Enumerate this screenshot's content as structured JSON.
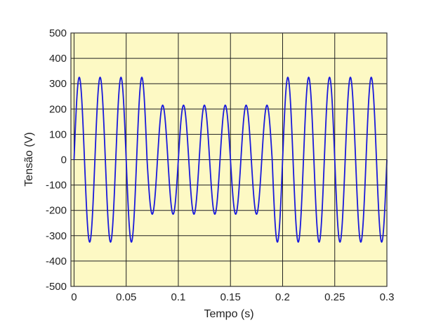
{
  "chart_data": {
    "type": "line",
    "title": "",
    "xlabel": "Tempo (s)",
    "ylabel": "Tensão (V)",
    "xlim": [
      -0.003,
      0.3
    ],
    "ylim": [
      -500,
      500
    ],
    "x_ticks": [
      0,
      0.05,
      0.1,
      0.15,
      0.2,
      0.25,
      0.3
    ],
    "x_tick_labels": [
      "0",
      "0.05",
      "0.1",
      "0.15",
      "0.2",
      "0.25",
      "0.3"
    ],
    "y_ticks": [
      500,
      400,
      300,
      200,
      100,
      0,
      -100,
      -200,
      -300,
      -400,
      -500
    ],
    "y_tick_labels": [
      "500",
      "400",
      "300",
      "200",
      "100",
      "0",
      "-100",
      "-200",
      "-300",
      "-400",
      "-500"
    ],
    "grid": true,
    "series": [
      {
        "signal": "sine",
        "frequency_hz": 50,
        "amplitude_segments": [
          {
            "t_start": 0,
            "t_end": 0.07,
            "amplitude": 325
          },
          {
            "t_start": 0.07,
            "t_end": 0.19,
            "amplitude": 215
          },
          {
            "t_start": 0.19,
            "t_end": 0.3,
            "amplitude": 325
          }
        ]
      }
    ],
    "colors": {
      "line": "#1a1adb",
      "plot_background": "#fdf9c4",
      "grid": "#202020",
      "frame": "#333333"
    }
  }
}
